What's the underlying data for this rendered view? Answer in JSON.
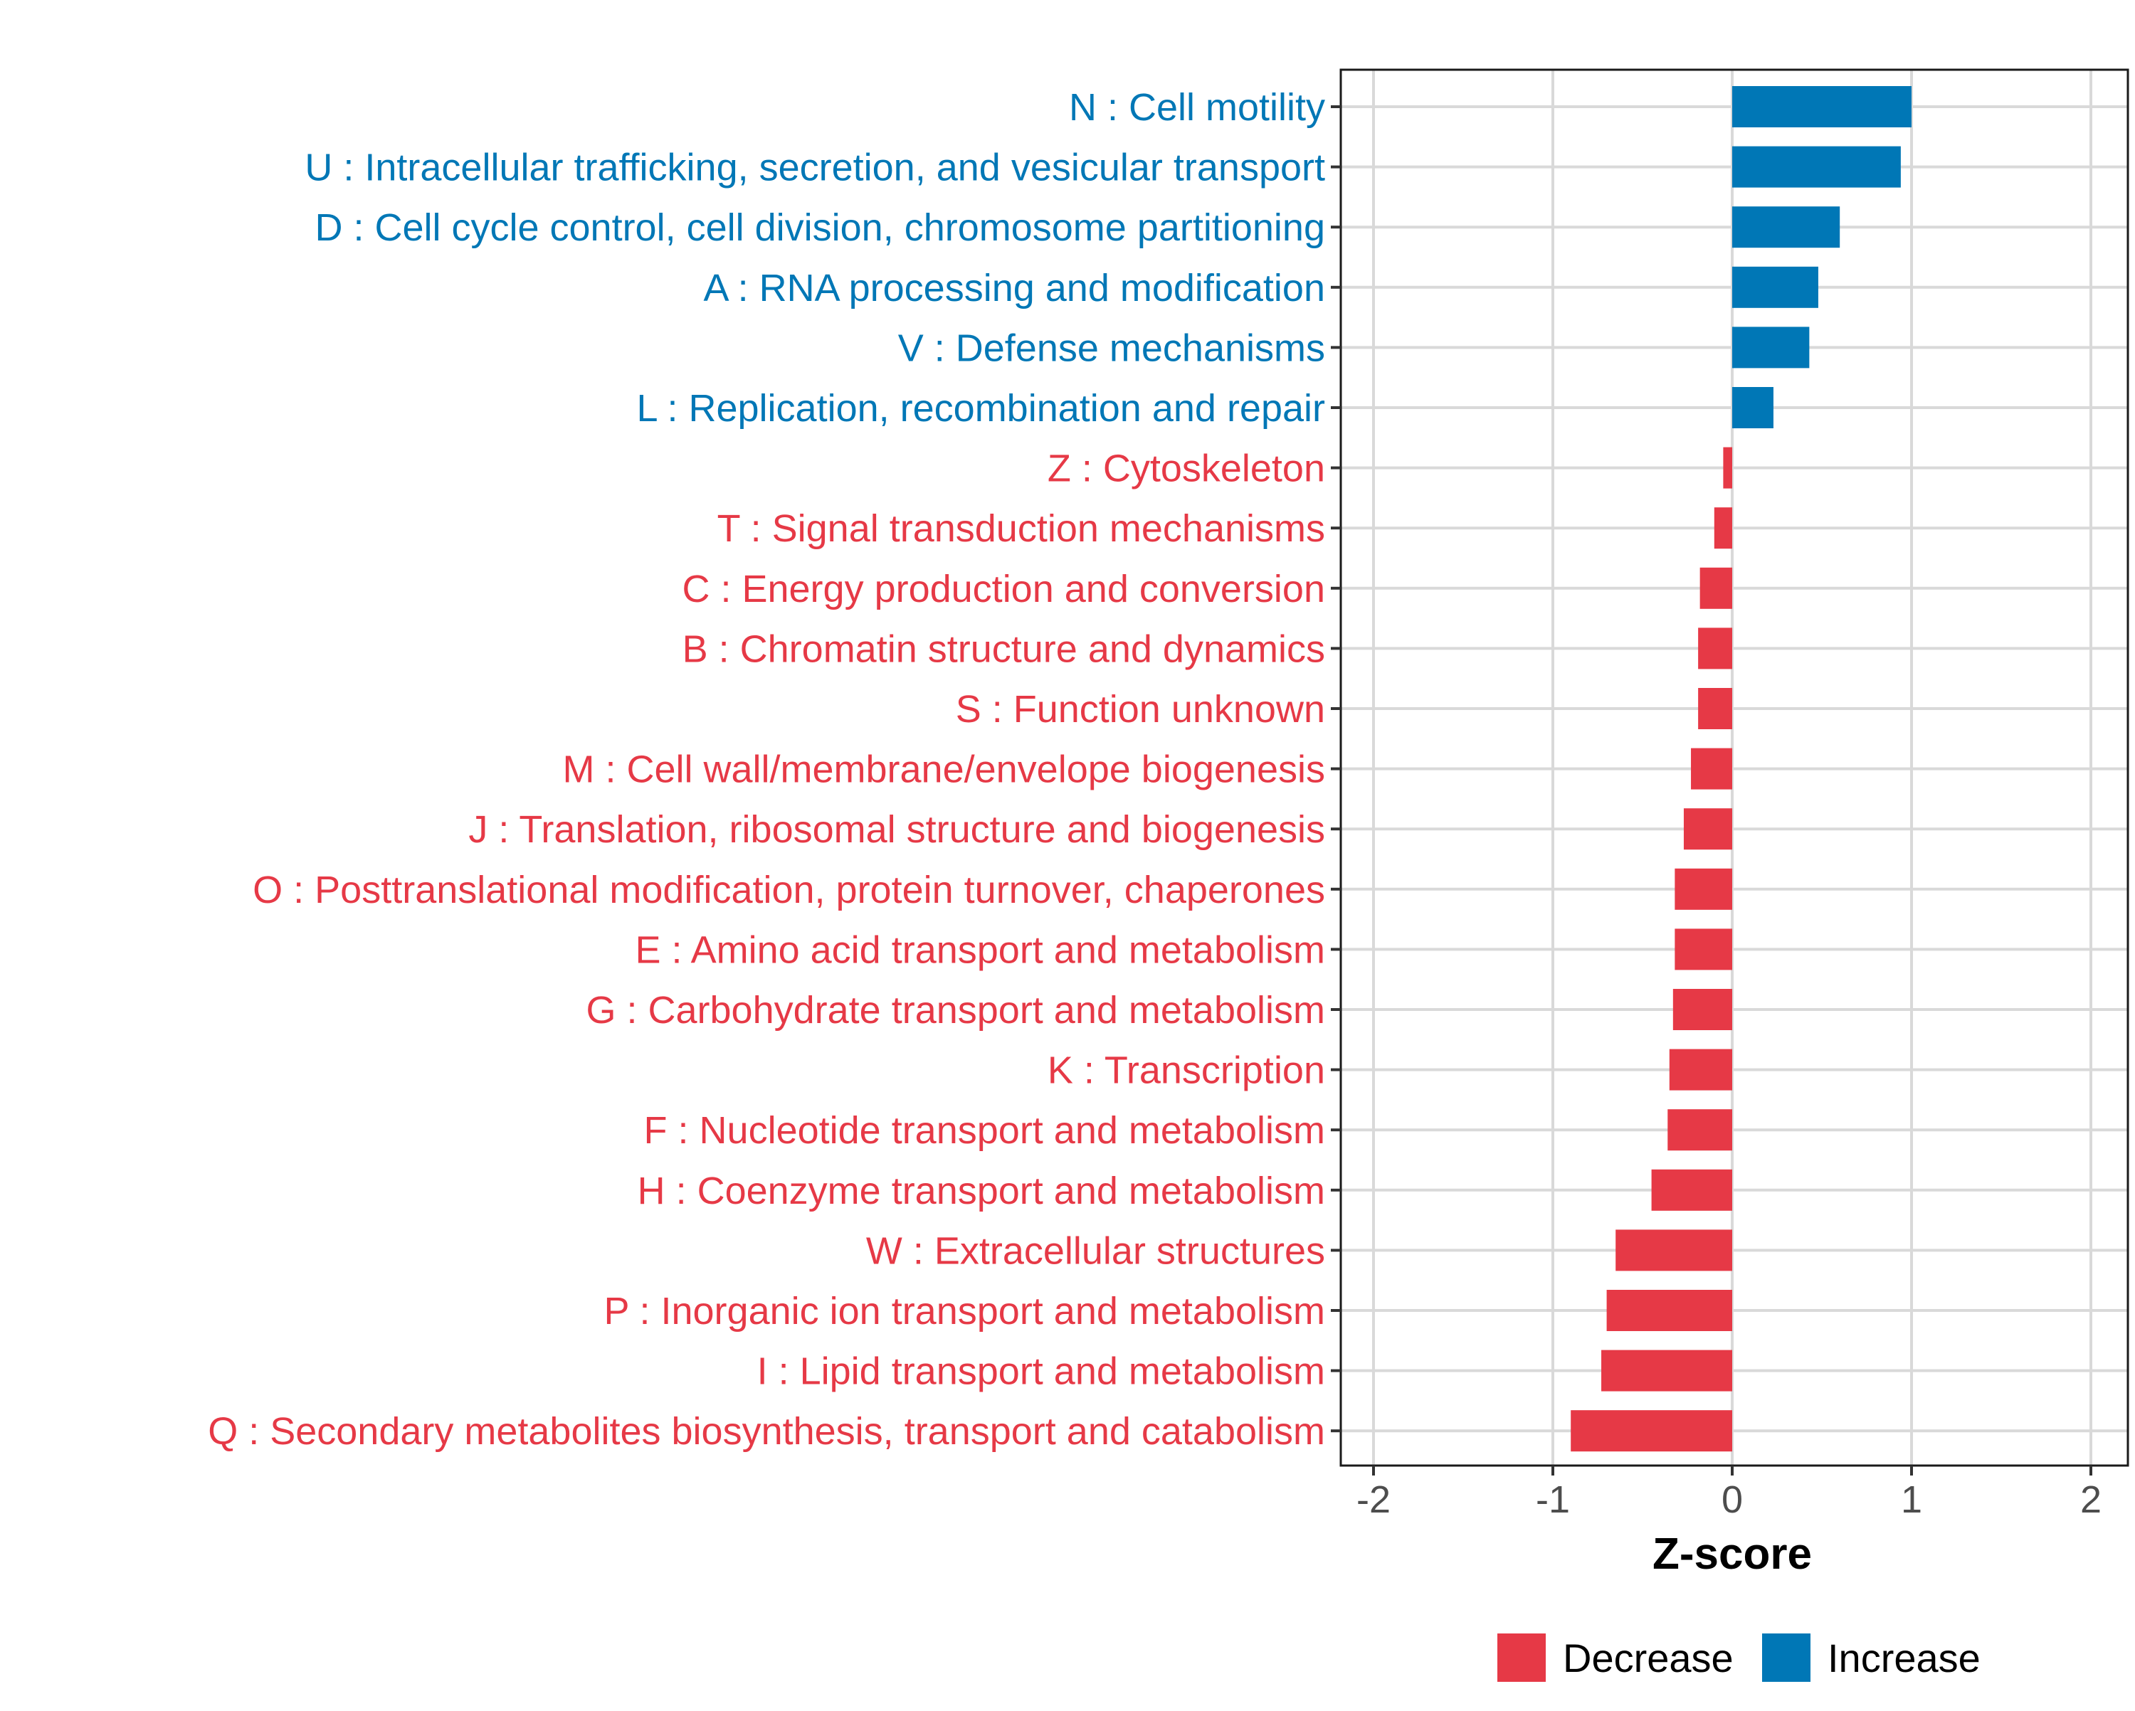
{
  "chart_data": {
    "type": "bar",
    "orientation": "horizontal",
    "xlabel": "Z-score",
    "ylabel": "",
    "xlim": [
      -2.2,
      2.2
    ],
    "x_ticks": [
      -2,
      -1,
      0,
      1,
      2
    ],
    "x_tick_labels": [
      "-2",
      "-1",
      "0",
      "1",
      "2"
    ],
    "grid": true,
    "legend": {
      "position": "bottom",
      "entries": [
        {
          "name": "Decrease",
          "color": "#E63946"
        },
        {
          "name": "Increase",
          "color": "#0077B6"
        }
      ]
    },
    "colors": {
      "Increase": "#0077B6",
      "Decrease": "#E63946"
    },
    "categories": [
      "N : Cell motility",
      "U : Intracellular trafficking, secretion, and vesicular transport",
      "D : Cell cycle control, cell division, chromosome partitioning",
      "A : RNA processing and modification",
      "V : Defense mechanisms",
      "L : Replication, recombination and repair",
      "Z : Cytoskeleton",
      "T : Signal transduction mechanisms",
      "C : Energy production and conversion",
      "B : Chromatin structure and dynamics",
      "S : Function unknown",
      "M : Cell wall/membrane/envelope biogenesis",
      "J : Translation, ribosomal structure and biogenesis",
      "O : Posttranslational modification, protein turnover, chaperones",
      "E : Amino acid transport and metabolism",
      "G : Carbohydrate transport and metabolism",
      "K : Transcription",
      "F : Nucleotide transport and metabolism",
      "H : Coenzyme transport and metabolism",
      "W : Extracellular structures",
      "P : Inorganic ion transport and metabolism",
      "I : Lipid transport and metabolism",
      "Q : Secondary metabolites biosynthesis, transport and catabolism"
    ],
    "values": [
      1.0,
      0.94,
      0.6,
      0.48,
      0.43,
      0.23,
      -0.05,
      -0.1,
      -0.18,
      -0.19,
      -0.19,
      -0.23,
      -0.27,
      -0.32,
      -0.32,
      -0.33,
      -0.35,
      -0.36,
      -0.45,
      -0.65,
      -0.7,
      -0.73,
      -0.9
    ],
    "groups": [
      "Increase",
      "Increase",
      "Increase",
      "Increase",
      "Increase",
      "Increase",
      "Decrease",
      "Decrease",
      "Decrease",
      "Decrease",
      "Decrease",
      "Decrease",
      "Decrease",
      "Decrease",
      "Decrease",
      "Decrease",
      "Decrease",
      "Decrease",
      "Decrease",
      "Decrease",
      "Decrease",
      "Decrease",
      "Decrease"
    ]
  }
}
